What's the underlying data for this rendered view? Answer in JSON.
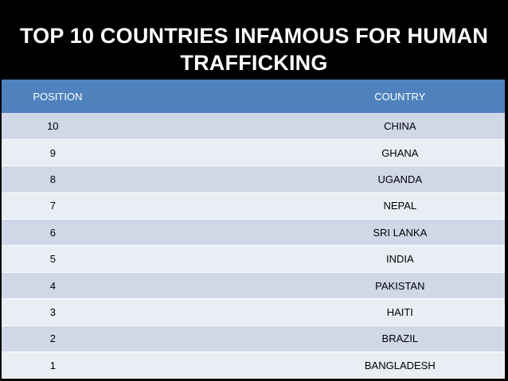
{
  "title": "TOP 10 COUNTRIES INFAMOUS FOR HUMAN TRAFFICKING",
  "table": {
    "headers": [
      "POSITION",
      "COUNTRY"
    ],
    "rows": [
      [
        "10",
        "CHINA"
      ],
      [
        "9",
        "GHANA"
      ],
      [
        "8",
        "UGANDA"
      ],
      [
        "7",
        "NEPAL"
      ],
      [
        "6",
        "SRI LANKA"
      ],
      [
        "5",
        "INDIA"
      ],
      [
        "4",
        "PAKISTAN"
      ],
      [
        "3",
        "HAITI"
      ],
      [
        "2",
        "BRAZIL"
      ],
      [
        "1",
        "BANGLADESH"
      ]
    ]
  },
  "colors": {
    "background": "#000000",
    "header_fill": "#4f81bd",
    "row_dark": "#d0d8e8",
    "row_light": "#e9edf4"
  }
}
